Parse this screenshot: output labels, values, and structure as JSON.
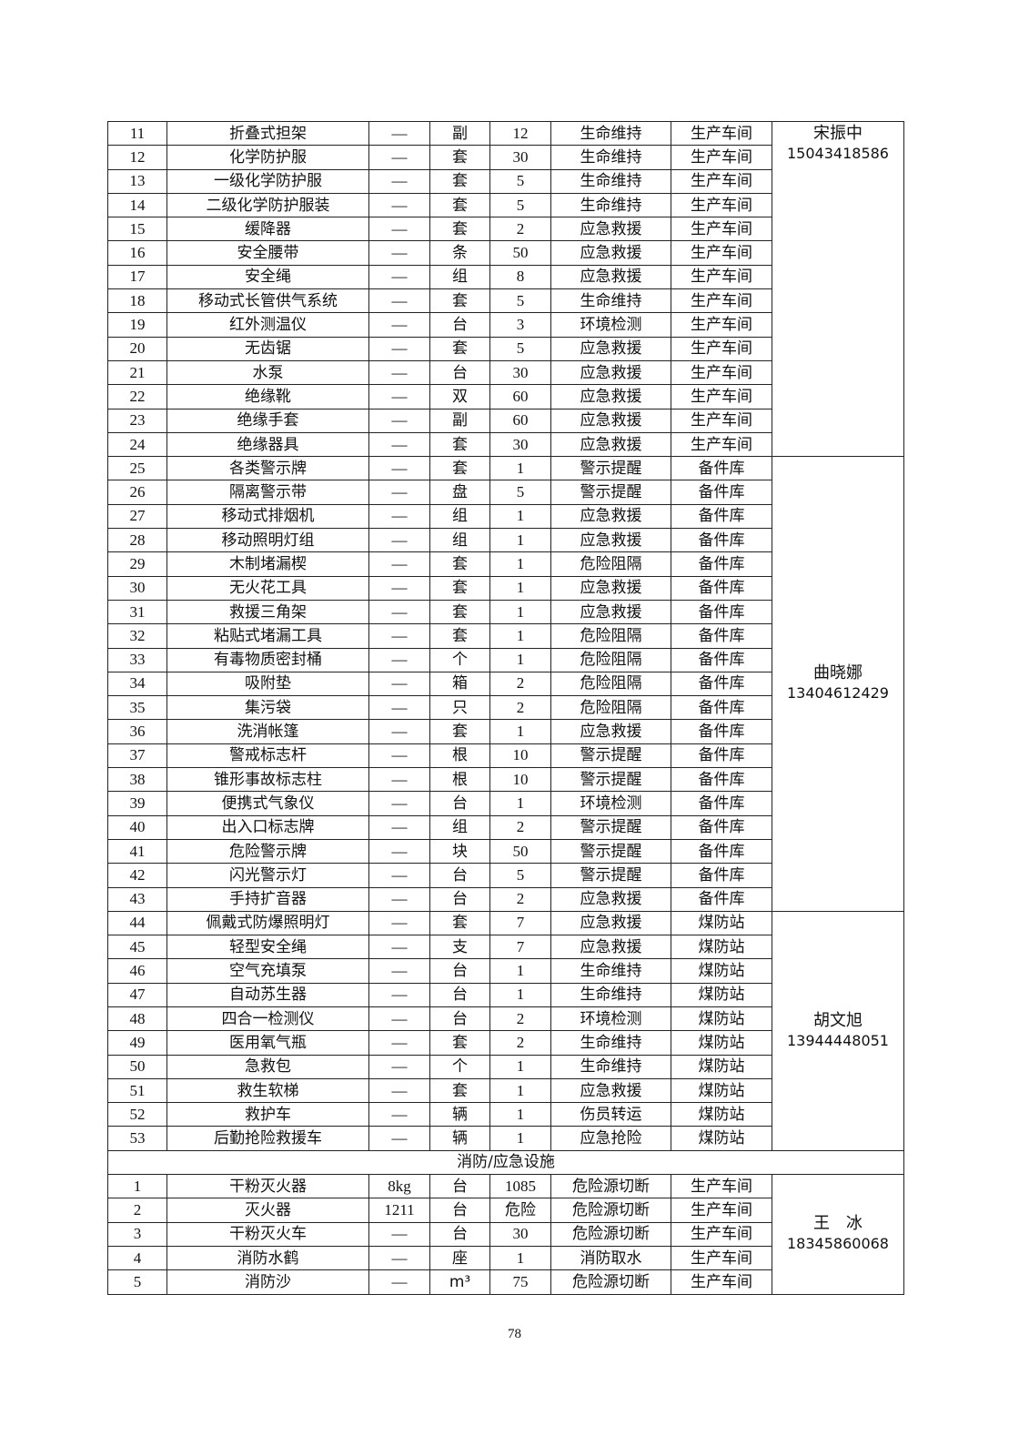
{
  "groups": [
    {
      "contact_name": "宋振中",
      "contact_phone": "15043418586",
      "align": "top",
      "rows": [
        [
          "11",
          "折叠式担架",
          "—",
          "副",
          "12",
          "生命维持",
          "生产车间"
        ],
        [
          "12",
          "化学防护服",
          "—",
          "套",
          "30",
          "生命维持",
          "生产车间"
        ],
        [
          "13",
          "一级化学防护服",
          "—",
          "套",
          "5",
          "生命维持",
          "生产车间"
        ],
        [
          "14",
          "二级化学防护服装",
          "—",
          "套",
          "5",
          "生命维持",
          "生产车间"
        ],
        [
          "15",
          "缓降器",
          "—",
          "套",
          "2",
          "应急救援",
          "生产车间"
        ],
        [
          "16",
          "安全腰带",
          "—",
          "条",
          "50",
          "应急救援",
          "生产车间"
        ],
        [
          "17",
          "安全绳",
          "—",
          "组",
          "8",
          "应急救援",
          "生产车间"
        ],
        [
          "18",
          "移动式长管供气系统",
          "—",
          "套",
          "5",
          "生命维持",
          "生产车间"
        ],
        [
          "19",
          "红外测温仪",
          "—",
          "台",
          "3",
          "环境检测",
          "生产车间"
        ],
        [
          "20",
          "无齿锯",
          "—",
          "套",
          "5",
          "应急救援",
          "生产车间"
        ],
        [
          "21",
          "水泵",
          "—",
          "台",
          "30",
          "应急救援",
          "生产车间"
        ],
        [
          "22",
          "绝缘靴",
          "—",
          "双",
          "60",
          "应急救援",
          "生产车间"
        ],
        [
          "23",
          "绝缘手套",
          "—",
          "副",
          "60",
          "应急救援",
          "生产车间"
        ],
        [
          "24",
          "绝缘器具",
          "—",
          "套",
          "30",
          "应急救援",
          "生产车间"
        ]
      ]
    },
    {
      "contact_name": "曲晓娜",
      "contact_phone": "13404612429",
      "align": "middle",
      "rows": [
        [
          "25",
          "各类警示牌",
          "—",
          "套",
          "1",
          "警示提醒",
          "备件库"
        ],
        [
          "26",
          "隔离警示带",
          "—",
          "盘",
          "5",
          "警示提醒",
          "备件库"
        ],
        [
          "27",
          "移动式排烟机",
          "—",
          "组",
          "1",
          "应急救援",
          "备件库"
        ],
        [
          "28",
          "移动照明灯组",
          "—",
          "组",
          "1",
          "应急救援",
          "备件库"
        ],
        [
          "29",
          "木制堵漏楔",
          "—",
          "套",
          "1",
          "危险阻隔",
          "备件库"
        ],
        [
          "30",
          "无火花工具",
          "—",
          "套",
          "1",
          "应急救援",
          "备件库"
        ],
        [
          "31",
          "救援三角架",
          "—",
          "套",
          "1",
          "应急救援",
          "备件库"
        ],
        [
          "32",
          "粘贴式堵漏工具",
          "—",
          "套",
          "1",
          "危险阻隔",
          "备件库"
        ],
        [
          "33",
          "有毒物质密封桶",
          "—",
          "个",
          "1",
          "危险阻隔",
          "备件库"
        ],
        [
          "34",
          "吸附垫",
          "—",
          "箱",
          "2",
          "危险阻隔",
          "备件库"
        ],
        [
          "35",
          "集污袋",
          "—",
          "只",
          "2",
          "危险阻隔",
          "备件库"
        ],
        [
          "36",
          "洗消帐篷",
          "—",
          "套",
          "1",
          "应急救援",
          "备件库"
        ],
        [
          "37",
          "警戒标志杆",
          "—",
          "根",
          "10",
          "警示提醒",
          "备件库"
        ],
        [
          "38",
          "锥形事故标志柱",
          "—",
          "根",
          "10",
          "警示提醒",
          "备件库"
        ],
        [
          "39",
          "便携式气象仪",
          "—",
          "台",
          "1",
          "环境检测",
          "备件库"
        ],
        [
          "40",
          "出入口标志牌",
          "—",
          "组",
          "2",
          "警示提醒",
          "备件库"
        ],
        [
          "41",
          "危险警示牌",
          "—",
          "块",
          "50",
          "警示提醒",
          "备件库"
        ],
        [
          "42",
          "闪光警示灯",
          "—",
          "台",
          "5",
          "警示提醒",
          "备件库"
        ],
        [
          "43",
          "手持扩音器",
          "—",
          "台",
          "2",
          "应急救援",
          "备件库"
        ]
      ]
    },
    {
      "contact_name": "胡文旭",
      "contact_phone": "13944448051",
      "align": "middle",
      "rows": [
        [
          "44",
          "佩戴式防爆照明灯",
          "—",
          "套",
          "7",
          "应急救援",
          "煤防站"
        ],
        [
          "45",
          "轻型安全绳",
          "—",
          "支",
          "7",
          "应急救援",
          "煤防站"
        ],
        [
          "46",
          "空气充填泵",
          "—",
          "台",
          "1",
          "生命维持",
          "煤防站"
        ],
        [
          "47",
          "自动苏生器",
          "—",
          "台",
          "1",
          "生命维持",
          "煤防站"
        ],
        [
          "48",
          "四合一检测仪",
          "—",
          "台",
          "2",
          "环境检测",
          "煤防站"
        ],
        [
          "49",
          "医用氧气瓶",
          "—",
          "套",
          "2",
          "生命维持",
          "煤防站"
        ],
        [
          "50",
          "急救包",
          "—",
          "个",
          "1",
          "生命维持",
          "煤防站"
        ],
        [
          "51",
          "救生软梯",
          "—",
          "套",
          "1",
          "应急救援",
          "煤防站"
        ],
        [
          "52",
          "救护车",
          "—",
          "辆",
          "1",
          "伤员转运",
          "煤防站"
        ],
        [
          "53",
          "后勤抢险救援车",
          "—",
          "辆",
          "1",
          "应急抢险",
          "煤防站"
        ]
      ]
    },
    {
      "section_title": "消防/应急设施",
      "contact_name": "王　冰",
      "contact_phone": "18345860068",
      "align": "middle",
      "rows": [
        [
          "1",
          "干粉灭火器",
          "8kg",
          "台",
          "1085",
          "危险源切断",
          "生产车间"
        ],
        [
          "2",
          "灭火器",
          "1211",
          "台",
          "危险",
          "危险源切断",
          "生产车间"
        ],
        [
          "3",
          "干粉灭火车",
          "—",
          "台",
          "30",
          "危险源切断",
          "生产车间"
        ],
        [
          "4",
          "消防水鹤",
          "—",
          "座",
          "1",
          "消防取水",
          "生产车间"
        ],
        [
          "5",
          "消防沙",
          "—",
          "m³",
          "75",
          "危险源切断",
          "生产车间"
        ]
      ]
    }
  ],
  "page_number": "78"
}
